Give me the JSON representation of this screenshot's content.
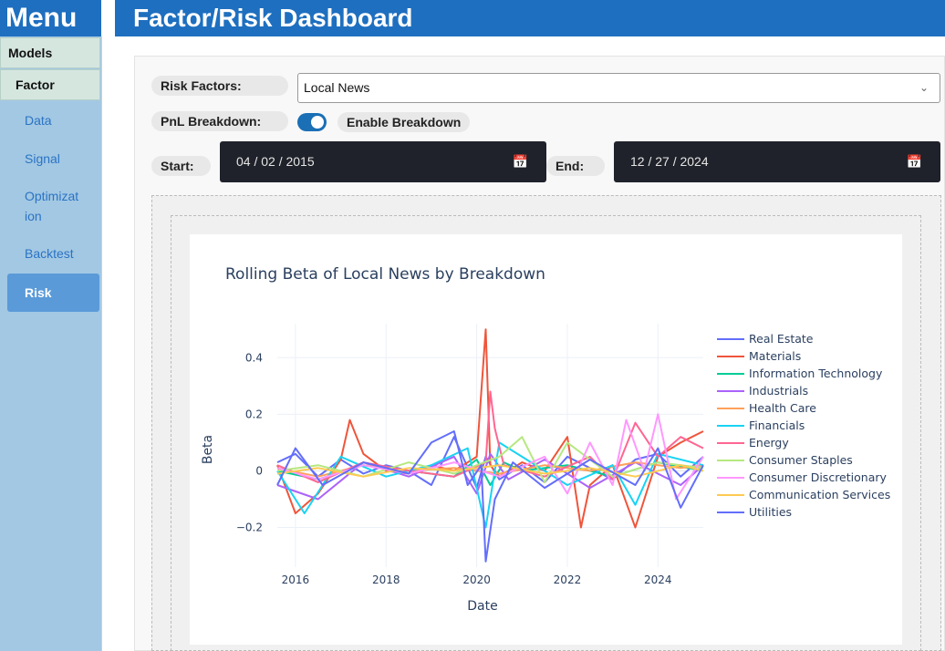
{
  "sidebar": {
    "menu_title": "Menu",
    "models_label": "Models",
    "factor_label": "Factor",
    "items": [
      {
        "label": "Data"
      },
      {
        "label": "Signal"
      },
      {
        "label": "Optimizat ion"
      },
      {
        "label": "Backtest"
      },
      {
        "label": "Risk",
        "active": true
      }
    ]
  },
  "header": {
    "title": "Factor/Risk Dashboard"
  },
  "controls": {
    "risk_factors_label": "Risk Factors:",
    "risk_factor_value": "Local News",
    "pnl_label": "PnL Breakdown:",
    "toggle_on": true,
    "enable_breakdown_label": "Enable Breakdown",
    "start_label": "Start:",
    "start_value": "04 / 02 / 2015",
    "end_label": "End:",
    "end_value": "12 / 27 / 2024"
  },
  "icons": {
    "chevron": "chevron-down-icon",
    "calendar": "calendar-icon"
  },
  "colors": {
    "header_blue": "#1e6fbf",
    "sidebar_bg": "#a3c8e3",
    "active_nav": "#5a9ad8",
    "toggle": "#1a6fb5"
  },
  "chart_data": {
    "type": "line",
    "title": "Rolling Beta of Local News by Breakdown",
    "xlabel": "Date",
    "ylabel": "Beta",
    "xlim": [
      2015.6,
      2025.0
    ],
    "ylim": [
      -0.34,
      0.52
    ],
    "xticks": [
      2016,
      2018,
      2020,
      2022,
      2024
    ],
    "yticks": [
      -0.2,
      0,
      0.2,
      0.4
    ],
    "ytick_labels": [
      "−0.2",
      "0",
      "0.2",
      "0.4"
    ],
    "grid": true,
    "legend_position": "right",
    "series": [
      {
        "name": "Real Estate",
        "color": "#636efa",
        "x": [
          2015.6,
          2016.0,
          2016.5,
          2017.0,
          2017.5,
          2018.0,
          2018.5,
          2019.0,
          2019.5,
          2020.0,
          2020.2,
          2020.5,
          2021.0,
          2021.5,
          2022.0,
          2022.5,
          2023.0,
          2023.5,
          2024.0,
          2024.5,
          2025.0
        ],
        "values": [
          0.03,
          0.06,
          -0.02,
          0.04,
          -0.01,
          0.02,
          0.0,
          -0.05,
          0.12,
          -0.06,
          0.05,
          -0.03,
          0.02,
          -0.04,
          0.05,
          0.01,
          -0.03,
          0.04,
          0.06,
          -0.02,
          0.05
        ]
      },
      {
        "name": "Materials",
        "color": "#ef553b",
        "x": [
          2015.6,
          2016.0,
          2016.5,
          2017.0,
          2017.2,
          2017.5,
          2018.0,
          2018.5,
          2019.0,
          2019.5,
          2020.0,
          2020.2,
          2020.3,
          2020.5,
          2021.0,
          2021.5,
          2022.0,
          2022.3,
          2022.5,
          2023.0,
          2023.5,
          2024.0,
          2024.5,
          2025.0
        ],
        "values": [
          0.02,
          -0.15,
          -0.08,
          0.04,
          0.18,
          0.06,
          0.0,
          -0.01,
          0.02,
          0.0,
          0.05,
          0.5,
          0.02,
          -0.02,
          0.03,
          0.0,
          0.12,
          -0.2,
          -0.05,
          0.02,
          -0.2,
          0.05,
          0.1,
          0.14
        ]
      },
      {
        "name": "Information Technology",
        "color": "#00cc96",
        "x": [
          2015.6,
          2016.5,
          2017.5,
          2018.5,
          2019.5,
          2020.0,
          2020.3,
          2020.6,
          2021.0,
          2022.0,
          2023.0,
          2024.0,
          2025.0
        ],
        "values": [
          0.0,
          -0.03,
          0.02,
          0.0,
          -0.02,
          0.04,
          -0.05,
          0.03,
          0.0,
          0.02,
          -0.02,
          0.03,
          0.0
        ]
      },
      {
        "name": "Industrials",
        "color": "#ab63fa",
        "x": [
          2015.6,
          2016.5,
          2017.5,
          2018.5,
          2019.5,
          2020.0,
          2020.3,
          2020.7,
          2021.5,
          2022.5,
          2023.5,
          2024.5,
          2025.0
        ],
        "values": [
          -0.05,
          -0.1,
          0.03,
          -0.02,
          0.05,
          -0.08,
          0.06,
          -0.03,
          0.04,
          -0.06,
          0.03,
          -0.05,
          0.02
        ]
      },
      {
        "name": "Health Care",
        "color": "#ffa15a",
        "x": [
          2015.6,
          2016.5,
          2017.5,
          2018.5,
          2019.5,
          2020.5,
          2021.5,
          2022.5,
          2023.5,
          2024.5,
          2025.0
        ],
        "values": [
          0.01,
          -0.02,
          0.02,
          0.0,
          0.01,
          -0.01,
          0.02,
          0.0,
          0.03,
          0.01,
          0.02
        ]
      },
      {
        "name": "Financials",
        "color": "#19d3f3",
        "x": [
          2015.6,
          2016.2,
          2017.0,
          2018.0,
          2019.0,
          2019.8,
          2020.2,
          2020.5,
          2021.0,
          2022.0,
          2023.0,
          2023.5,
          2024.0,
          2025.0
        ],
        "values": [
          0.0,
          -0.15,
          0.05,
          -0.02,
          0.02,
          0.08,
          -0.2,
          0.1,
          0.05,
          -0.05,
          0.02,
          -0.12,
          0.06,
          0.02
        ]
      },
      {
        "name": "Energy",
        "color": "#ff6692",
        "x": [
          2015.6,
          2016.5,
          2017.5,
          2018.5,
          2019.5,
          2020.2,
          2020.3,
          2020.4,
          2020.6,
          2021.5,
          2022.5,
          2023.0,
          2023.5,
          2024.0,
          2024.5,
          2025.0
        ],
        "values": [
          0.02,
          -0.04,
          0.03,
          0.0,
          -0.02,
          0.03,
          0.28,
          0.15,
          0.02,
          -0.02,
          0.05,
          -0.03,
          0.17,
          0.05,
          0.12,
          0.08
        ]
      },
      {
        "name": "Consumer Staples",
        "color": "#b6e880",
        "x": [
          2015.6,
          2016.5,
          2017.5,
          2018.5,
          2019.5,
          2020.5,
          2021.0,
          2021.5,
          2022.0,
          2023.0,
          2024.0,
          2025.0
        ],
        "values": [
          0.0,
          0.02,
          -0.02,
          0.03,
          -0.01,
          0.05,
          0.12,
          -0.04,
          0.1,
          -0.02,
          0.03,
          0.01
        ]
      },
      {
        "name": "Consumer Discretionary",
        "color": "#ff97ff",
        "x": [
          2015.6,
          2016.5,
          2017.5,
          2018.5,
          2019.5,
          2020.5,
          2021.5,
          2022.0,
          2022.5,
          2023.0,
          2023.3,
          2023.7,
          2024.0,
          2024.4,
          2025.0
        ],
        "values": [
          0.01,
          -0.03,
          0.02,
          -0.01,
          0.03,
          -0.02,
          0.05,
          -0.08,
          0.1,
          -0.05,
          0.18,
          0.0,
          0.2,
          -0.1,
          0.05
        ]
      },
      {
        "name": "Communication Services",
        "color": "#fecb52",
        "x": [
          2015.6,
          2016.5,
          2017.5,
          2018.5,
          2019.5,
          2020.5,
          2021.5,
          2022.5,
          2023.5,
          2024.5,
          2025.0
        ],
        "values": [
          -0.01,
          0.01,
          -0.02,
          0.01,
          0.0,
          0.02,
          -0.01,
          0.01,
          -0.02,
          0.02,
          0.0
        ]
      },
      {
        "name": "Utilities",
        "color": "#636efa",
        "x": [
          2015.6,
          2016.0,
          2016.6,
          2017.5,
          2018.5,
          2019.0,
          2019.5,
          2019.8,
          2020.1,
          2020.2,
          2020.4,
          2020.8,
          2021.5,
          2022.5,
          2023.5,
          2024.0,
          2024.5,
          2025.0
        ],
        "values": [
          -0.05,
          0.08,
          -0.05,
          0.03,
          -0.01,
          0.1,
          0.14,
          -0.05,
          0.02,
          -0.32,
          -0.1,
          0.03,
          -0.06,
          0.04,
          -0.05,
          0.08,
          -0.13,
          0.02
        ]
      }
    ]
  }
}
